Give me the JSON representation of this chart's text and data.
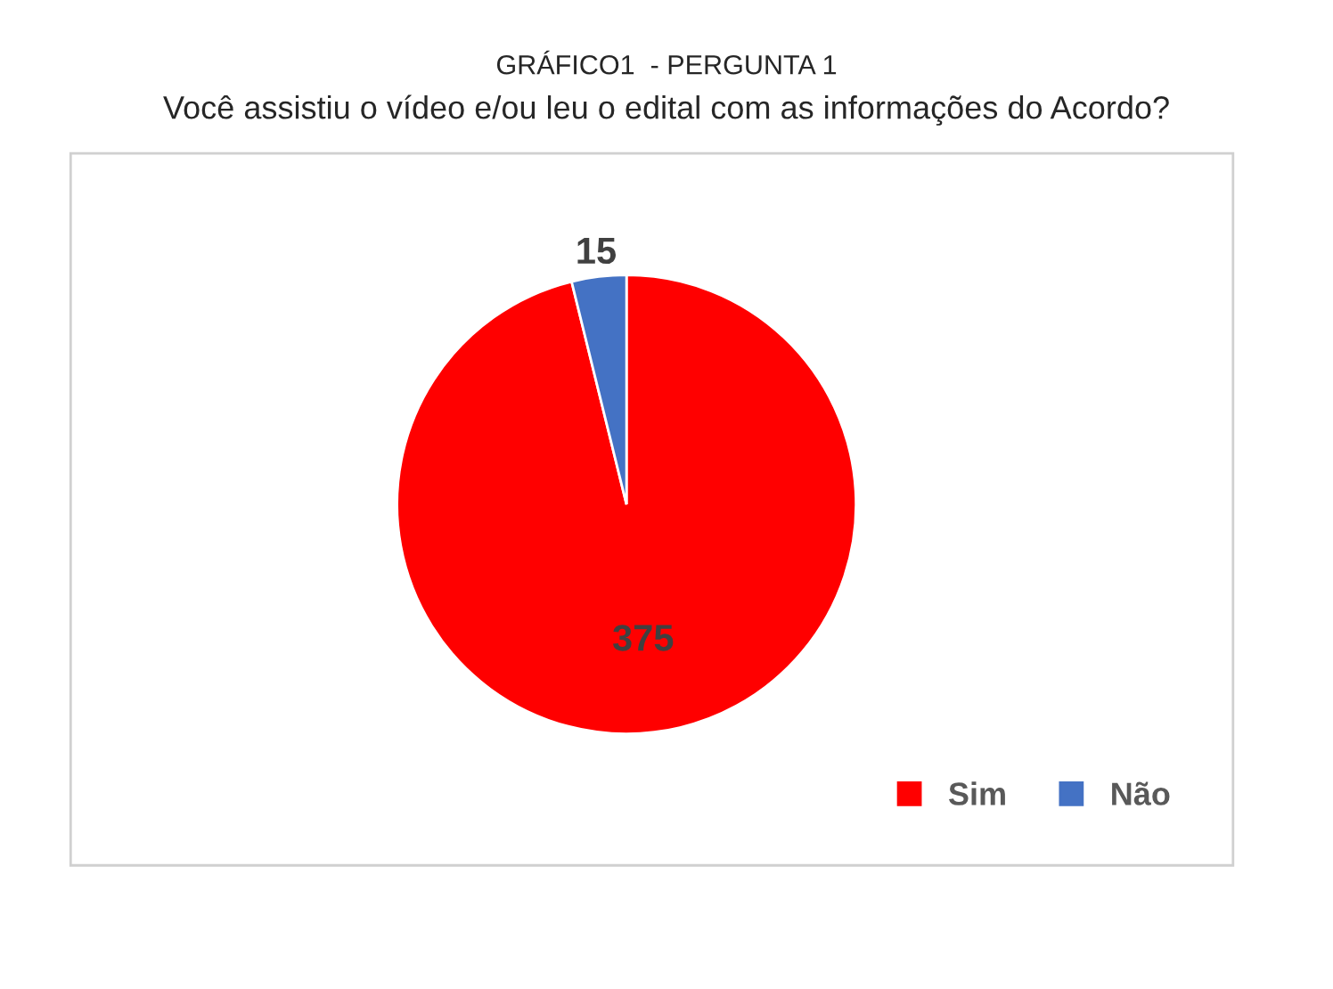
{
  "chart_data": {
    "type": "pie",
    "title": "GRÁFICO1  - PERGUNTA 1",
    "subtitle": "Você assistiu o vídeo e/ou leu o edital com as informações do Acordo?",
    "categories": [
      "Sim",
      "Não"
    ],
    "values": [
      375,
      15
    ],
    "colors": [
      "#ff0000",
      "#4472c4"
    ],
    "data_labels": true,
    "legend": "bottom right"
  }
}
